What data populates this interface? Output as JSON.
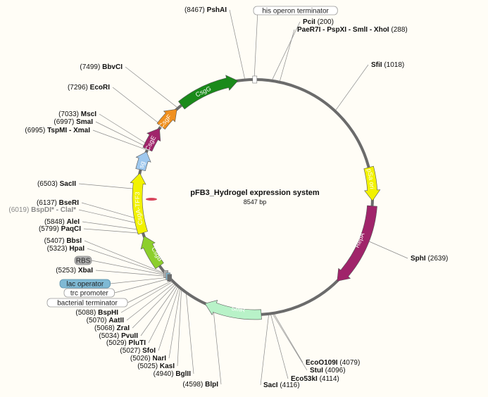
{
  "plasmid": {
    "name": "pFB3_Hydrogel expression system",
    "length_label": "8547 bp",
    "length": 8547
  },
  "colors": {
    "backbone": "#6b6b6b",
    "CsgG": "#1a8a1a",
    "CsgF": "#f0901e",
    "CsgE": "#a0246a",
    "CsgC": "#9ec8ee",
    "CsgA-TFF3": "#f2f200",
    "CsgB": "#8ccf2b",
    "SmR": "#b8f2c8",
    "RepA": "#a0246a",
    "pSa ori": "#f2f200",
    "lac operator": "#7fb9d4",
    "RBS": "#b0b0b0"
  },
  "features": [
    {
      "label": "CsgG",
      "start": 7630,
      "end": 8350,
      "color": "#1a8a1a",
      "text_color": "#ffffff"
    },
    {
      "label": "CsgF",
      "start": 7290,
      "end": 7560,
      "color": "#f0901e",
      "text_color": "#ffffff"
    },
    {
      "label": "CsgE",
      "start": 6980,
      "end": 7260,
      "color": "#a0246a",
      "text_color": "#ffffff"
    },
    {
      "label": "CsgC",
      "start": 6730,
      "end": 6950,
      "color": "#9ec8ee",
      "text_color": "#222222"
    },
    {
      "label": "CsgA-TFF3",
      "start": 5990,
      "end": 6690,
      "color": "#f2f200",
      "text_color": "#222222"
    },
    {
      "label": "CsgB",
      "start": 5560,
      "end": 5950,
      "color": "#8ccf2b",
      "text_color": "#ffffff"
    },
    {
      "label": "SmR",
      "start": 4200,
      "end": 4870,
      "color": "#b8f2c8",
      "text_color": "#222222"
    },
    {
      "label": "RepA",
      "start": 2240,
      "end": 3220,
      "color": "#a0246a",
      "text_color": "#ffffff"
    },
    {
      "label": "pSa ori",
      "start": 1790,
      "end": 2180,
      "color": "#f2f200",
      "text_color": "#222222"
    }
  ],
  "sites": [
    {
      "name": "PshAI",
      "pos": "(8467)",
      "map": 8430,
      "side": "left"
    },
    {
      "name": "BbvCI",
      "pos": "(7499)",
      "map": 7575,
      "side": "left"
    },
    {
      "name": "EcoRI",
      "pos": "(7296)",
      "map": 7302,
      "side": "left"
    },
    {
      "name": "MscI",
      "pos": "(7033)",
      "map": 7031,
      "side": "left"
    },
    {
      "name": "SmaI",
      "pos": "(6997)",
      "map": 7001,
      "side": "left"
    },
    {
      "name": "TspMI - XmaI",
      "pos": "(6995)",
      "map": 6970,
      "side": "left"
    },
    {
      "name": "SacII",
      "pos": "(6503)",
      "map": 6503,
      "side": "left"
    },
    {
      "name": "BseRI",
      "pos": "(6137)",
      "map": 6160,
      "side": "left"
    },
    {
      "name": "BspDI* - ClaI*",
      "pos": "(6019)",
      "map": 6105,
      "side": "left",
      "grey": true
    },
    {
      "name": "AleI",
      "pos": "(5848)",
      "map": 6030,
      "side": "left"
    },
    {
      "name": "PaqCI",
      "pos": "(5799)",
      "map": 5990,
      "side": "left"
    },
    {
      "name": "BbsI",
      "pos": "(5407)",
      "map": 5475,
      "side": "left"
    },
    {
      "name": "HpaI",
      "pos": "(5323)",
      "map": 5455,
      "side": "left"
    },
    {
      "name": "XbaI",
      "pos": "(5253)",
      "map": 5420,
      "side": "left"
    },
    {
      "name": "BspHI",
      "pos": "(5088)",
      "map": 5325,
      "side": "left"
    },
    {
      "name": "AatII",
      "pos": "(5070)",
      "map": 5300,
      "side": "left"
    },
    {
      "name": "ZraI",
      "pos": "(5068)",
      "map": 5280,
      "side": "left"
    },
    {
      "name": "PvuII",
      "pos": "(5034)",
      "map": 5260,
      "side": "left"
    },
    {
      "name": "PluTI",
      "pos": "(5029)",
      "map": 5240,
      "side": "left"
    },
    {
      "name": "SfoI",
      "pos": "(5027)",
      "map": 5220,
      "side": "left"
    },
    {
      "name": "NarI",
      "pos": "(5026)",
      "map": 5200,
      "side": "left"
    },
    {
      "name": "KasI",
      "pos": "(5025)",
      "map": 5180,
      "side": "left"
    },
    {
      "name": "BglII",
      "pos": "(4940)",
      "map": 5110,
      "side": "left"
    },
    {
      "name": "BlpI",
      "pos": "(4598)",
      "map": 4760,
      "side": "left"
    },
    {
      "name": "PciI",
      "pos": "(200)",
      "map": 200,
      "side": "right"
    },
    {
      "name": "PaeR7I - PspXI - SmlI - XhoI",
      "pos": "(288)",
      "map": 288,
      "side": "right"
    },
    {
      "name": "SfiI",
      "pos": "(1018)",
      "map": 1018,
      "side": "right"
    },
    {
      "name": "SphI",
      "pos": "(2639)",
      "map": 2639,
      "side": "right"
    },
    {
      "name": "EcoO109I",
      "pos": "(4079)",
      "map": 4050,
      "side": "right"
    },
    {
      "name": "StuI",
      "pos": "(4096)",
      "map": 4065,
      "side": "right"
    },
    {
      "name": "Eco53kI",
      "pos": "(4114)",
      "map": 4090,
      "side": "right"
    },
    {
      "name": "SacI",
      "pos": "(4116)",
      "map": 4116,
      "side": "right"
    }
  ],
  "annotations": [
    {
      "text": "his operon terminator",
      "map": 8540,
      "bg": "#ffffff",
      "border": "#9a9a9a"
    },
    {
      "text": "RBS",
      "map": 5440,
      "bg": "#b0b0b0",
      "border": "#8a8a8a"
    },
    {
      "text": "lac operator",
      "map": 5400,
      "bg": "#7fb9d4",
      "border": "#5a8ea8"
    },
    {
      "text": "trc promoter",
      "map": 5380,
      "bg": "#ffffff",
      "border": "#9a9a9a"
    },
    {
      "text": "bacterial terminator",
      "map": 5340,
      "bg": "#ffffff",
      "border": "#9a9a9a"
    }
  ]
}
